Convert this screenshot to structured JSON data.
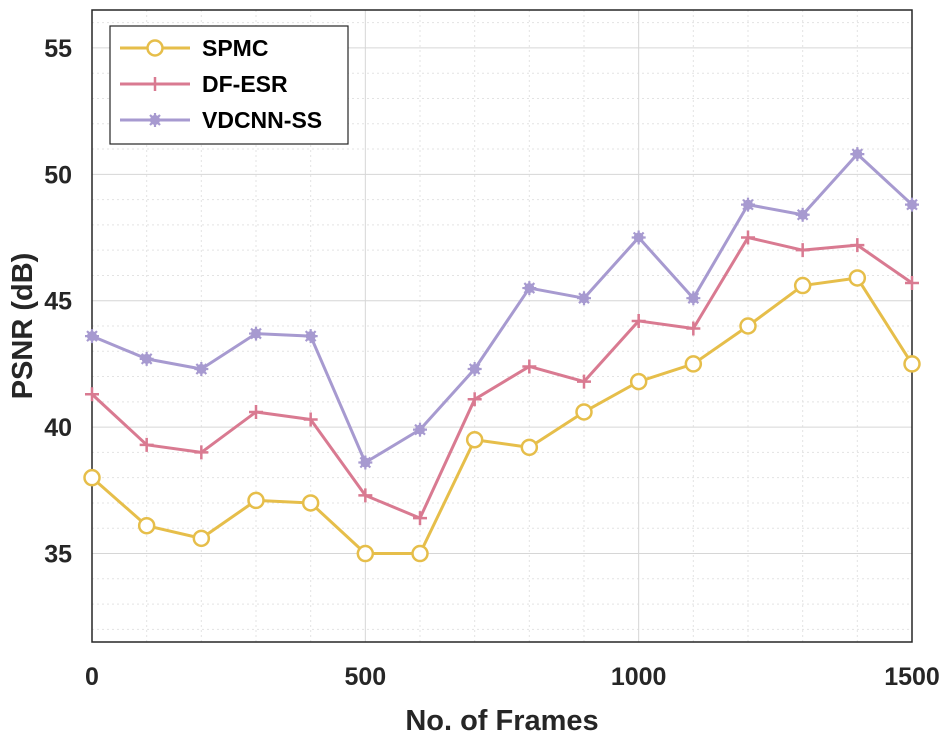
{
  "chart_data": {
    "type": "line",
    "xlabel": "No. of Frames",
    "ylabel": "PSNR (dB)",
    "xlim": [
      0,
      1500
    ],
    "ylim": [
      31.5,
      56.5
    ],
    "grid": true,
    "minor_grid": true,
    "legend_position": "top-left",
    "x_ticks": [
      "0",
      "500",
      "1000",
      "1500"
    ],
    "y_ticks": [
      "35",
      "40",
      "45",
      "50",
      "55"
    ],
    "x": [
      0,
      100,
      200,
      300,
      400,
      500,
      600,
      700,
      800,
      900,
      1000,
      1100,
      1200,
      1300,
      1400,
      1500
    ],
    "series": [
      {
        "name": "SPMC",
        "color": "#E6BE4A",
        "marker": "circle",
        "values": [
          38.0,
          36.1,
          35.6,
          37.1,
          37.0,
          35.0,
          35.0,
          39.5,
          39.2,
          40.6,
          41.8,
          42.5,
          44.0,
          45.6,
          45.9,
          42.5
        ]
      },
      {
        "name": "DF-ESR",
        "color": "#D97A91",
        "marker": "plus",
        "values": [
          41.3,
          39.3,
          39.0,
          40.6,
          40.3,
          37.3,
          36.4,
          41.1,
          42.4,
          41.8,
          44.2,
          43.9,
          47.5,
          47.0,
          47.2,
          45.7
        ]
      },
      {
        "name": "VDCNN-SS",
        "color": "#A79AD0",
        "marker": "star",
        "values": [
          43.6,
          42.7,
          42.3,
          43.7,
          43.6,
          38.6,
          39.9,
          42.3,
          45.5,
          45.1,
          47.5,
          45.1,
          48.8,
          48.4,
          50.8,
          48.8
        ]
      }
    ]
  }
}
